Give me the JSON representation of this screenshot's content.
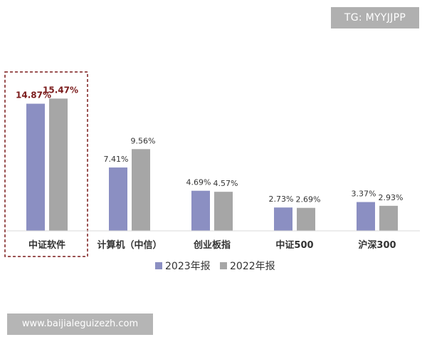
{
  "watermarks": {
    "top_right": "TG: MYYJJPP",
    "bottom_left": "www.baijialeguizezh.com"
  },
  "colors": {
    "series_2023": "#8b8fc2",
    "series_2022": "#a6a6a6",
    "highlight_box": "#7b1c1c",
    "highlight_label": "#7b1c1c",
    "label": "#333333"
  },
  "chart_data": {
    "type": "bar",
    "categories": [
      "中证软件",
      "计算机（中信）",
      "创业板指",
      "中证500",
      "沪深300"
    ],
    "series": [
      {
        "name": "2023年报",
        "values": [
          14.87,
          7.41,
          4.69,
          2.73,
          3.37
        ],
        "labels": [
          "14.87%",
          "7.41%",
          "4.69%",
          "2.73%",
          "3.37%"
        ]
      },
      {
        "name": "2022年报",
        "values": [
          15.47,
          9.56,
          4.57,
          2.69,
          2.93
        ],
        "labels": [
          "15.47%",
          "9.56%",
          "4.57%",
          "2.69%",
          "2.93%"
        ]
      }
    ],
    "ylim": [
      0,
      20
    ],
    "grid": false,
    "legend": "bottom-center",
    "highlighted_category": "中证软件"
  }
}
